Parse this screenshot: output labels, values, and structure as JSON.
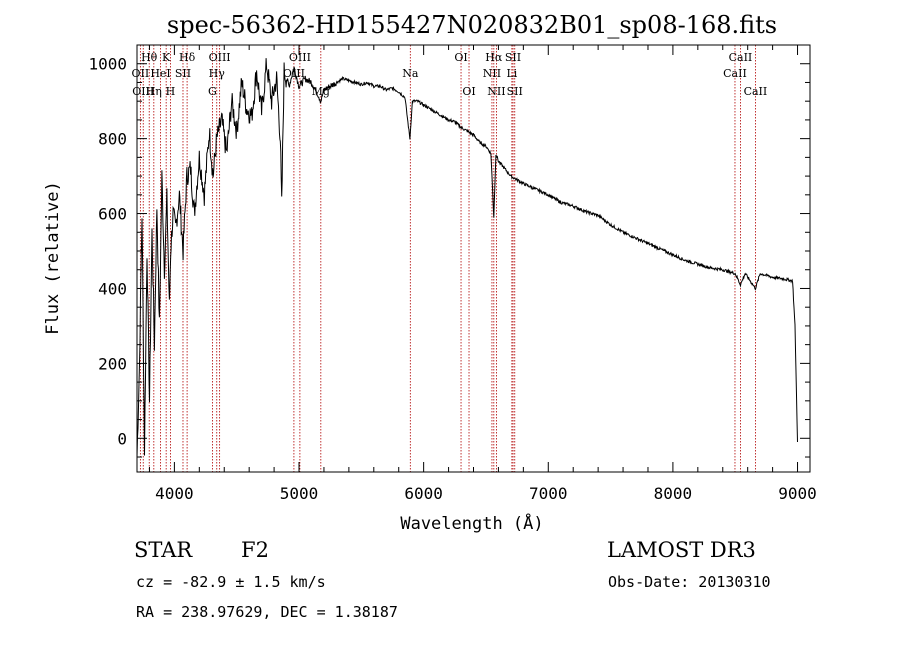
{
  "chart_data": {
    "type": "line",
    "title": "spec-56362-HD155427N020832B01_sp08-168.fits",
    "xlabel": "Wavelength (Å)",
    "ylabel": "Flux (relative)",
    "xlim": [
      3700,
      9100
    ],
    "ylim": [
      -90,
      1050
    ],
    "xticks": [
      4000,
      5000,
      6000,
      7000,
      8000,
      9000
    ],
    "yticks": [
      0,
      200,
      400,
      600,
      800,
      1000
    ],
    "series": [
      {
        "name": "flux",
        "x": [
          3700,
          3720,
          3740,
          3760,
          3780,
          3800,
          3820,
          3840,
          3860,
          3880,
          3900,
          3920,
          3940,
          3960,
          3970,
          3990,
          4010,
          4040,
          4070,
          4100,
          4130,
          4160,
          4200,
          4240,
          4280,
          4310,
          4340,
          4380,
          4420,
          4460,
          4500,
          4540,
          4580,
          4620,
          4660,
          4700,
          4740,
          4780,
          4820,
          4850,
          4861,
          4880,
          4920,
          4960,
          5000,
          5050,
          5100,
          5150,
          5175,
          5200,
          5250,
          5300,
          5350,
          5400,
          5450,
          5500,
          5550,
          5600,
          5650,
          5700,
          5750,
          5800,
          5850,
          5890,
          5910,
          5950,
          6000,
          6050,
          6100,
          6150,
          6200,
          6250,
          6300,
          6350,
          6400,
          6450,
          6500,
          6540,
          6563,
          6580,
          6600,
          6650,
          6700,
          6800,
          6900,
          7000,
          7100,
          7200,
          7300,
          7400,
          7500,
          7600,
          7700,
          7800,
          7900,
          8000,
          8100,
          8200,
          8300,
          8400,
          8500,
          8542,
          8580,
          8662,
          8700,
          8800,
          8900,
          8960,
          8980,
          9000
        ],
        "y": [
          -50,
          200,
          600,
          -30,
          500,
          100,
          550,
          250,
          620,
          300,
          700,
          450,
          640,
          350,
          500,
          600,
          560,
          650,
          500,
          700,
          720,
          600,
          750,
          650,
          820,
          700,
          800,
          850,
          760,
          900,
          820,
          950,
          880,
          860,
          980,
          870,
          1000,
          900,
          960,
          800,
          620,
          980,
          940,
          990,
          940,
          960,
          950,
          920,
          900,
          930,
          940,
          950,
          960,
          955,
          950,
          945,
          950,
          940,
          940,
          930,
          935,
          925,
          910,
          800,
          900,
          900,
          890,
          880,
          870,
          860,
          850,
          845,
          830,
          820,
          810,
          790,
          780,
          760,
          590,
          760,
          740,
          720,
          700,
          680,
          665,
          650,
          630,
          620,
          605,
          595,
          570,
          550,
          535,
          520,
          505,
          490,
          475,
          465,
          455,
          450,
          440,
          410,
          440,
          400,
          440,
          430,
          425,
          420,
          300,
          -10
        ]
      }
    ],
    "spectral_lines": [
      {
        "label": "Hθ",
        "wl": 3798,
        "row": 1
      },
      {
        "label": "OII",
        "wl": 3727,
        "row": 2
      },
      {
        "label": "OIII",
        "wl": 3750,
        "row": 3
      },
      {
        "label": "K",
        "wl": 3934,
        "row": 1
      },
      {
        "label": "HeI",
        "wl": 3889,
        "row": 2
      },
      {
        "label": "Hη",
        "wl": 3835,
        "row": 3
      },
      {
        "label": "SII",
        "wl": 4069,
        "row": 2
      },
      {
        "label": "H",
        "wl": 3968,
        "row": 3
      },
      {
        "label": "Hδ",
        "wl": 4102,
        "row": 1
      },
      {
        "label": "OIII",
        "wl": 4363,
        "row": 1
      },
      {
        "label": "Hγ",
        "wl": 4340,
        "row": 2
      },
      {
        "label": "G",
        "wl": 4305,
        "row": 3
      },
      {
        "label": "OIII",
        "wl": 5007,
        "row": 1
      },
      {
        "label": "OIII",
        "wl": 4959,
        "row": 2
      },
      {
        "label": "Mg",
        "wl": 5175,
        "row": 3
      },
      {
        "label": "Na",
        "wl": 5893,
        "row": 2
      },
      {
        "label": "OI",
        "wl": 6300,
        "row": 1
      },
      {
        "label": "OI",
        "wl": 6364,
        "row": 3
      },
      {
        "label": "Hα",
        "wl": 6563,
        "row": 1
      },
      {
        "label": "SII",
        "wl": 6717,
        "row": 1
      },
      {
        "label": "NII",
        "wl": 6548,
        "row": 2
      },
      {
        "label": "Li",
        "wl": 6708,
        "row": 2
      },
      {
        "label": "NII",
        "wl": 6584,
        "row": 3
      },
      {
        "label": "SII",
        "wl": 6731,
        "row": 3
      },
      {
        "label": "CaII",
        "wl": 8542,
        "row": 1
      },
      {
        "label": "CaII",
        "wl": 8498,
        "row": 2
      },
      {
        "label": "CaII",
        "wl": 8662,
        "row": 3
      }
    ]
  },
  "info": {
    "object_class": "STAR",
    "subclass": "F2",
    "survey": "LAMOST DR3",
    "cz": "cz = -82.9 ± 1.5 km/s",
    "obs_date": "Obs-Date: 20130310",
    "coords": "RA = 238.97629, DEC =    1.38187"
  },
  "colors": {
    "line_marker": "#b00000",
    "spectrum": "#000000"
  }
}
